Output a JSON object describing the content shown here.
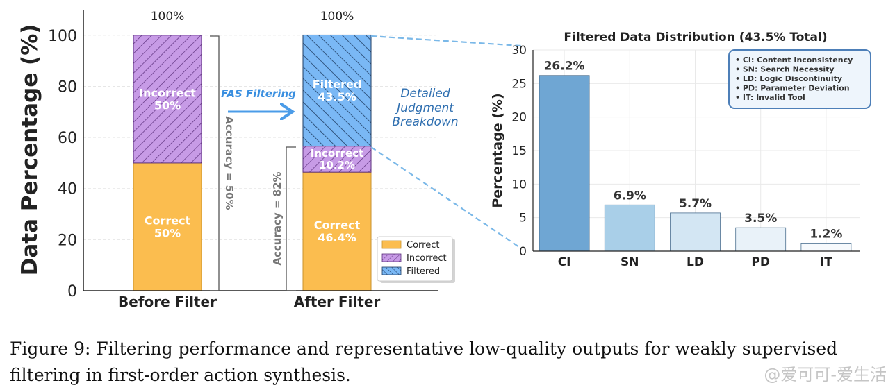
{
  "caption": "Figure 9: Filtering performance and representative low-quality outputs for weakly supervised filtering in first-order action synthesis.",
  "watermark": "@爱可可-爱生活",
  "colors": {
    "correct": "#fbbd4f",
    "incorrect": "#c79be6",
    "filtered": "#7ab8f5",
    "bar_ci": "#6fa6d3",
    "bar_sn": "#a9cfe8",
    "bar_ld": "#d3e6f3",
    "bar_pd": "#e9f2f9",
    "bar_it": "#f6f9fc",
    "arrow": "#4b9ce8",
    "dashed": "#7ab8e8"
  },
  "chart_data": [
    {
      "type": "bar",
      "stacked": true,
      "categories": [
        "Before Filter",
        "After Filter"
      ],
      "series": [
        {
          "name": "Correct",
          "values": [
            50,
            46.4
          ],
          "labels": [
            "Correct\n50%",
            "Correct\n46.4%"
          ]
        },
        {
          "name": "Incorrect",
          "values": [
            50,
            10.2
          ],
          "labels": [
            "Incorrect\n50%",
            "Incorrect\n10.2%"
          ]
        },
        {
          "name": "Filtered",
          "values": [
            0,
            43.5
          ],
          "labels": [
            "",
            "Filtered\n43.5%"
          ]
        }
      ],
      "totals": [
        "100%",
        "100%"
      ],
      "ylabel": "Data Percentage (%)",
      "ylim": [
        0,
        110
      ],
      "yticks": [
        0,
        20,
        40,
        60,
        80,
        100
      ],
      "legend": {
        "position": "bottom-right",
        "entries": [
          "Correct",
          "Incorrect",
          "Filtered"
        ]
      },
      "annotations": {
        "arrow_label": "FAS Filtering",
        "accuracy_before": "Accuracy = 50%",
        "accuracy_after": "Accuracy = 82%",
        "breakdown": [
          "Detailed",
          "Judgment",
          "Breakdown"
        ]
      }
    },
    {
      "type": "bar",
      "title": "Filtered Data Distribution (43.5% Total)",
      "categories": [
        "CI",
        "SN",
        "LD",
        "PD",
        "IT"
      ],
      "values": [
        26.2,
        6.9,
        5.7,
        3.5,
        1.2
      ],
      "data_labels": [
        "26.2%",
        "6.9%",
        "5.7%",
        "3.5%",
        "1.2%"
      ],
      "ylabel": "Percentage (%)",
      "ylim": [
        0,
        30
      ],
      "yticks": [
        0,
        5,
        10,
        15,
        20,
        25,
        30
      ],
      "legend": {
        "position": "top-right",
        "entries": [
          "• CI: Content Inconsistency",
          "• SN: Search Necessity",
          "• LD: Logic Discontinuity",
          "• PD: Parameter Deviation",
          "• IT: Invalid Tool"
        ]
      }
    }
  ]
}
